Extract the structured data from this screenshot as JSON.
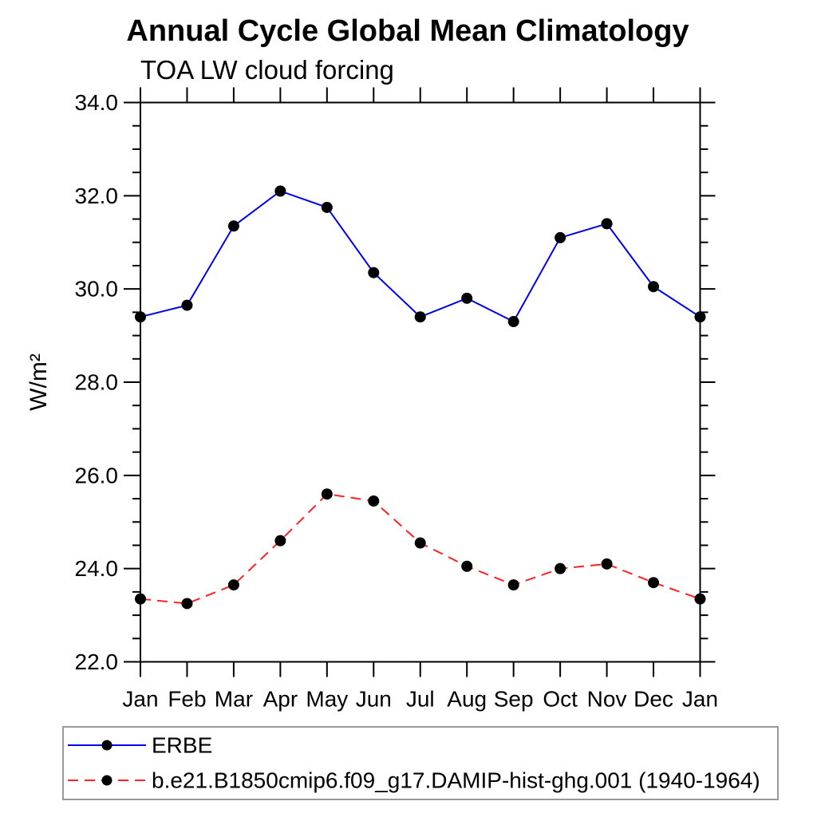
{
  "page": {
    "background": "#ffffff"
  },
  "chart_data": {
    "type": "line",
    "title": "Annual Cycle Global Mean Climatology",
    "subtitle": "TOA LW cloud forcing",
    "ylabel": "W/m²",
    "xlabel": "",
    "categories": [
      "Jan",
      "Feb",
      "Mar",
      "Apr",
      "May",
      "Jun",
      "Jul",
      "Aug",
      "Sep",
      "Oct",
      "Nov",
      "Dec",
      "Jan"
    ],
    "ylim": [
      22.0,
      34.0
    ],
    "y_major_step": 2.0,
    "y_minor_step": 0.5,
    "y_tick_labels": [
      "22.0",
      "24.0",
      "26.0",
      "28.0",
      "30.0",
      "32.0",
      "34.0"
    ],
    "grid": false,
    "legend_position": "bottom-left-box",
    "axis_color": "#000000",
    "legend_border_color": "#999999",
    "marker_color": "#000000",
    "series": [
      {
        "name": "ERBE",
        "color": "#0000ee",
        "line_style": "solid",
        "marker": "filled-circle",
        "values": [
          29.4,
          29.65,
          31.35,
          32.1,
          31.75,
          30.35,
          29.4,
          29.8,
          29.3,
          31.1,
          31.4,
          30.05,
          29.4
        ]
      },
      {
        "name": "b.e21.B1850cmip6.f09_g17.DAMIP-hist-ghg.001 (1940-1964)",
        "color": "#ff2222",
        "line_style": "dashed",
        "marker": "filled-circle",
        "values": [
          23.35,
          23.25,
          23.65,
          24.6,
          25.6,
          25.45,
          24.55,
          24.05,
          23.65,
          24.0,
          24.1,
          23.7,
          23.35
        ]
      }
    ]
  }
}
